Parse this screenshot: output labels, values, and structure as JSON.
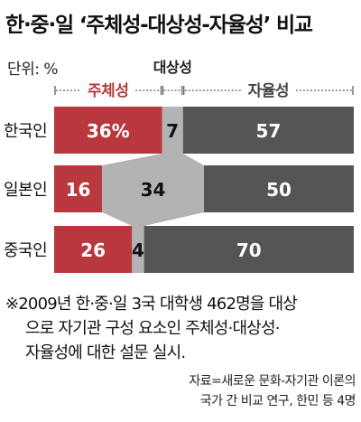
{
  "title": "한·중·일 ‘주체성-대상성-자율성’ 비교",
  "unit_label": "단위: %",
  "note_lines": [
    "※2009년 한·중·일 3국 대학생 462명을 대상",
    "으로 자기관 구성 요소인 주체성·대상성·",
    "자율성에 대한 설문 실시."
  ],
  "source_lines": [
    "자료=새로운 문화-자기관 이론의",
    "국가 간 비교 연구, 한민 등 4명"
  ],
  "colors": {
    "subjectivity": "#b8383d",
    "objectivity": "#b3b3b3",
    "autonomy": "#555555",
    "connector": "#b3b3b3"
  },
  "chart_data": {
    "type": "bar",
    "orientation": "horizontal",
    "stacked": true,
    "unit": "%",
    "categories": [
      "한국인",
      "일본인",
      "중국인"
    ],
    "series": [
      {
        "name": "주체성",
        "values": [
          36,
          16,
          26
        ],
        "labels": [
          "36%",
          "16",
          "26"
        ]
      },
      {
        "name": "대상성",
        "values": [
          7,
          34,
          4
        ],
        "labels": [
          "7",
          "34",
          "4"
        ]
      },
      {
        "name": "자율성",
        "values": [
          57,
          50,
          70
        ],
        "labels": [
          "57",
          "50",
          "70"
        ]
      }
    ],
    "xlim": [
      0,
      100
    ],
    "legend_placement": "top"
  }
}
